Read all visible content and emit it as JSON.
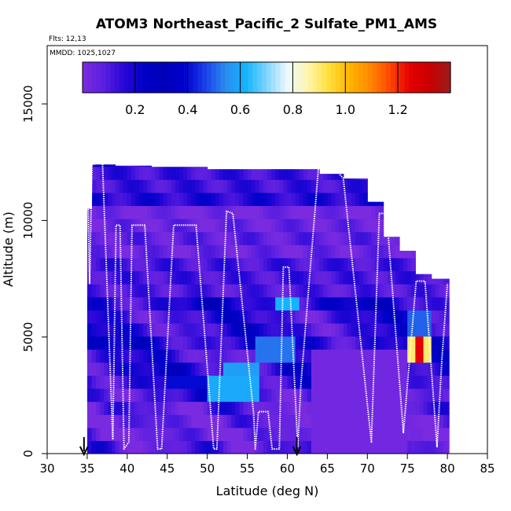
{
  "chart_data": {
    "type": "heatmap",
    "title": "ATOM3 Northeast_Pacific_2 Sulfate_PM1_AMS",
    "annotations": {
      "flights": "Flts: 12,13",
      "dates": "MMDD: 1025,1027"
    },
    "xlabel": "Latitude (deg N)",
    "ylabel": "Altitude (m)",
    "xlim": [
      30,
      85
    ],
    "ylim": [
      0,
      17500
    ],
    "x_ticks": [
      30,
      35,
      40,
      45,
      50,
      55,
      60,
      65,
      70,
      75,
      80,
      85
    ],
    "y_ticks": [
      0,
      5000,
      10000,
      15000
    ],
    "colorbar": {
      "range": [
        0,
        1.4
      ],
      "ticks": [
        0.2,
        0.4,
        0.6,
        0.8,
        1.0,
        1.2
      ],
      "tick_labels": [
        "0.2",
        "0.4",
        "0.6",
        "0.8",
        "1.0",
        "1.2"
      ],
      "colors": [
        "#7a2be0",
        "#5c1fe0",
        "#2a08d8",
        "#0000c8",
        "#0000b8",
        "#0000d0",
        "#1a40e8",
        "#2a8cf0",
        "#14b4ff",
        "#7ed4ff",
        "#ecf8ff",
        "#fff6b0",
        "#ffe040",
        "#ffb800",
        "#ff8c00",
        "#ff4a00",
        "#e60000",
        "#c80000",
        "#9c1c1c"
      ]
    },
    "markers": [
      {
        "name": "start-arrow",
        "lat": 34.6
      },
      {
        "name": "turn-arrow",
        "lat": 61.2
      }
    ],
    "columns": [
      {
        "x0": 35.0,
        "x1": 35.6,
        "top": 10500
      },
      {
        "x0": 35.6,
        "x1": 38.5,
        "top": 12400
      },
      {
        "x0": 38.5,
        "x1": 43.0,
        "top": 12350
      },
      {
        "x0": 43.0,
        "x1": 50.0,
        "top": 12300
      },
      {
        "x0": 50.0,
        "x1": 57.0,
        "top": 12200
      },
      {
        "x0": 57.0,
        "x1": 64.0,
        "top": 12200
      },
      {
        "x0": 64.0,
        "x1": 67.0,
        "top": 12000
      },
      {
        "x0": 67.0,
        "x1": 70.0,
        "top": 11800
      },
      {
        "x0": 70.0,
        "x1": 72.0,
        "top": 10800
      },
      {
        "x0": 72.0,
        "x1": 74.0,
        "top": 9300
      },
      {
        "x0": 74.0,
        "x1": 76.0,
        "top": 8700
      },
      {
        "x0": 76.0,
        "x1": 78.0,
        "top": 7700
      },
      {
        "x0": 78.0,
        "x1": 80.2,
        "top": 7500
      }
    ],
    "anomalies": [
      {
        "x0": 58.5,
        "x1": 61.5,
        "y0": 5900,
        "y1": 6600,
        "value": 0.62
      },
      {
        "x0": 56.0,
        "x1": 61.0,
        "y0": 4200,
        "y1": 5000,
        "value": 0.52
      },
      {
        "x0": 52.0,
        "x1": 56.5,
        "y0": 3400,
        "y1": 4000,
        "value": 0.58
      },
      {
        "x0": 50.0,
        "x1": 56.5,
        "y0": 2500,
        "y1": 3100,
        "value": 0.6
      },
      {
        "x0": 45.0,
        "x1": 50.0,
        "y0": 2600,
        "y1": 3100,
        "value": 0.4
      },
      {
        "x0": 63.0,
        "x1": 75.0,
        "y0": 0,
        "y1": 4300,
        "value": 0.02
      },
      {
        "x0": 75.2,
        "x1": 77.8,
        "y0": 5000,
        "y1": 6000,
        "value": 0.5
      },
      {
        "x0": 75.2,
        "x1": 77.8,
        "y0": 3800,
        "y1": 5000,
        "value": 0.9
      },
      {
        "x0": 76.2,
        "x1": 76.8,
        "y0": 3800,
        "y1": 5000,
        "value": 1.25
      }
    ],
    "flight_track": [
      [
        35.0,
        12400
      ],
      [
        35.3,
        7300
      ],
      [
        35.6,
        12400
      ],
      [
        36.9,
        12500
      ],
      [
        38.2,
        600
      ],
      [
        38.6,
        9800
      ],
      [
        39.1,
        9800
      ],
      [
        39.6,
        200
      ],
      [
        40.2,
        500
      ],
      [
        40.6,
        9800
      ],
      [
        42.2,
        9800
      ],
      [
        43.8,
        200
      ],
      [
        44.3,
        200
      ],
      [
        45.8,
        9800
      ],
      [
        48.6,
        9800
      ],
      [
        50.8,
        200
      ],
      [
        51.2,
        200
      ],
      [
        52.4,
        10400
      ],
      [
        53.2,
        10300
      ],
      [
        55.8,
        1700
      ],
      [
        56.0,
        200
      ],
      [
        56.4,
        1800
      ],
      [
        57.6,
        1800
      ],
      [
        58.1,
        200
      ],
      [
        59.0,
        200
      ],
      [
        59.5,
        8000
      ],
      [
        60.2,
        8000
      ],
      [
        61.3,
        300
      ],
      [
        61.7,
        3000
      ],
      [
        63.9,
        12300
      ],
      [
        66.0,
        12200
      ],
      [
        67.0,
        11800
      ],
      [
        70.5,
        500
      ],
      [
        71.5,
        10300
      ],
      [
        72.4,
        10300
      ],
      [
        74.5,
        900
      ],
      [
        76.1,
        7400
      ],
      [
        77.2,
        7400
      ],
      [
        78.7,
        300
      ],
      [
        79.3,
        4000
      ],
      [
        80.0,
        7300
      ]
    ]
  }
}
